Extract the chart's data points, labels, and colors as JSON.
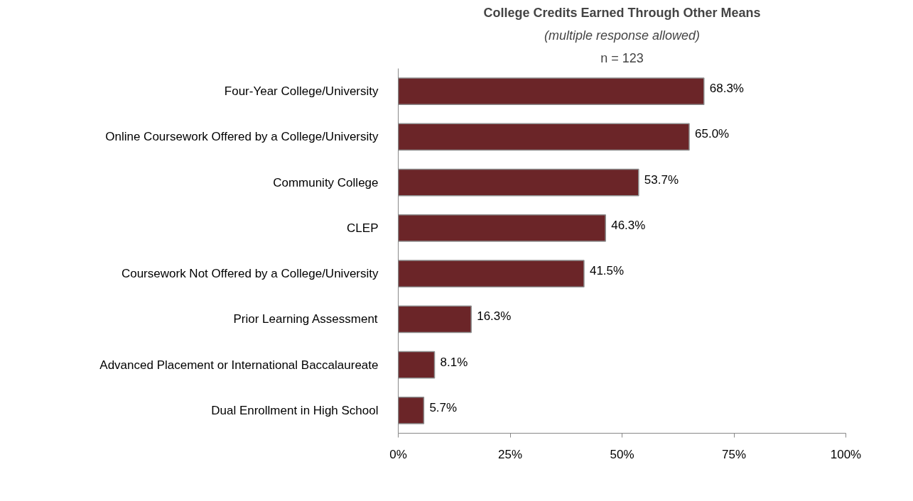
{
  "chart_data": {
    "type": "bar",
    "orientation": "horizontal",
    "title": "College Credits Earned Through Other Means",
    "subtitle": "(multiple response allowed)",
    "annotations": [
      "n = 123"
    ],
    "categories": [
      "Four-Year College/University",
      "Online Coursework Offered by a College/University",
      "Community College",
      "CLEP",
      "Coursework Not Offered by a College/University",
      "Prior Learning Assessment",
      "Advanced Placement or International Baccalaureate",
      "Dual Enrollment in High School"
    ],
    "values": [
      68.3,
      65.0,
      53.7,
      46.3,
      41.5,
      16.3,
      8.1,
      5.7
    ],
    "value_labels": [
      "68.3%",
      "65.0%",
      "53.7%",
      "46.3%",
      "41.5%",
      "16.3%",
      "8.1%",
      "5.7%"
    ],
    "color": "#6b2528",
    "xlim": [
      0,
      100
    ],
    "xticks": [
      {
        "value": 0,
        "label": "0%"
      },
      {
        "value": 25,
        "label": "25%"
      },
      {
        "value": 50,
        "label": "50%"
      },
      {
        "value": 75,
        "label": "75%"
      },
      {
        "value": 100,
        "label": "100%"
      }
    ],
    "grid": false
  }
}
